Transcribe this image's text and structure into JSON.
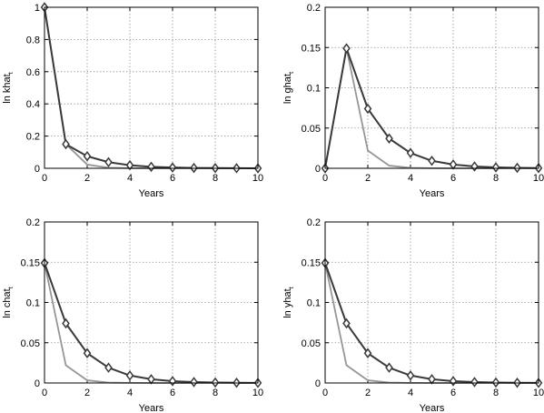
{
  "colors": {
    "series_dark": "#3a3a3a",
    "series_light": "#969696",
    "grid": "#7a7a7a",
    "axis": "#000000"
  },
  "chart_data": [
    {
      "type": "line",
      "xlabel": "Years",
      "ylabel": {
        "main": "ln khat",
        "subscript": "t"
      },
      "xlim": [
        0,
        10
      ],
      "ylim": [
        0,
        1
      ],
      "xticks": [
        "0",
        "2",
        "4",
        "6",
        "8",
        "10"
      ],
      "yticks": [
        "0",
        "0.2",
        "0.4",
        "0.6",
        "0.8",
        "1"
      ],
      "grid": true,
      "x": [
        0,
        1,
        2,
        3,
        4,
        5,
        6,
        7,
        8,
        9,
        10
      ],
      "series": [
        {
          "style": "dark-with-diamond-markers",
          "values": [
            1.0,
            0.15,
            0.075,
            0.038,
            0.019,
            0.0095,
            0.0048,
            0.0024,
            0.0012,
            0.0006,
            0.0003
          ]
        },
        {
          "style": "light-no-markers",
          "values": [
            1.0,
            0.15,
            0.023,
            0.0034,
            0.0005,
            0.0001,
            0,
            0,
            0,
            0,
            0
          ]
        }
      ]
    },
    {
      "type": "line",
      "xlabel": "Years",
      "ylabel": {
        "main": "ln ghat",
        "subscript": "t"
      },
      "xlim": [
        0,
        10
      ],
      "ylim": [
        0,
        0.2
      ],
      "xticks": [
        "0",
        "2",
        "4",
        "6",
        "8",
        "10"
      ],
      "yticks": [
        "0",
        "0.05",
        "0.1",
        "0.15",
        "0.2"
      ],
      "grid": true,
      "x": [
        0,
        1,
        2,
        3,
        4,
        5,
        6,
        7,
        8,
        9,
        10
      ],
      "series": [
        {
          "style": "dark-with-diamond-markers",
          "values": [
            0,
            0.149,
            0.074,
            0.037,
            0.019,
            0.0093,
            0.0047,
            0.0023,
            0.0012,
            0.0006,
            0.0003
          ]
        },
        {
          "style": "light-no-markers",
          "values": [
            0,
            0.149,
            0.022,
            0.0033,
            0.0005,
            0.0001,
            0,
            0,
            0,
            0,
            0
          ]
        }
      ]
    },
    {
      "type": "line",
      "xlabel": "Years",
      "ylabel": {
        "main": "ln chat",
        "subscript": "t"
      },
      "xlim": [
        0,
        10
      ],
      "ylim": [
        0,
        0.2
      ],
      "xticks": [
        "0",
        "2",
        "4",
        "6",
        "8",
        "10"
      ],
      "yticks": [
        "0",
        "0.05",
        "0.1",
        "0.15",
        "0.2"
      ],
      "grid": true,
      "x": [
        0,
        1,
        2,
        3,
        4,
        5,
        6,
        7,
        8,
        9,
        10
      ],
      "series": [
        {
          "style": "dark-with-diamond-markers",
          "values": [
            0.149,
            0.074,
            0.037,
            0.019,
            0.0093,
            0.0047,
            0.0023,
            0.0012,
            0.0006,
            0.0003,
            0.0001
          ]
        },
        {
          "style": "light-no-markers",
          "values": [
            0.149,
            0.022,
            0.0033,
            0.0005,
            0.0001,
            0,
            0,
            0,
            0,
            0,
            0
          ]
        }
      ]
    },
    {
      "type": "line",
      "xlabel": "Years",
      "ylabel": {
        "main": "ln yhat",
        "subscript": "t"
      },
      "xlim": [
        0,
        10
      ],
      "ylim": [
        0,
        0.2
      ],
      "xticks": [
        "0",
        "2",
        "4",
        "6",
        "8",
        "10"
      ],
      "yticks": [
        "0",
        "0.05",
        "0.1",
        "0.15",
        "0.2"
      ],
      "grid": true,
      "x": [
        0,
        1,
        2,
        3,
        4,
        5,
        6,
        7,
        8,
        9,
        10
      ],
      "series": [
        {
          "style": "dark-with-diamond-markers",
          "values": [
            0.149,
            0.074,
            0.037,
            0.019,
            0.0093,
            0.0047,
            0.0023,
            0.0012,
            0.0006,
            0.0003,
            0.0001
          ]
        },
        {
          "style": "light-no-markers",
          "values": [
            0.149,
            0.022,
            0.0033,
            0.0005,
            0.0001,
            0,
            0,
            0,
            0,
            0,
            0
          ]
        }
      ]
    }
  ]
}
